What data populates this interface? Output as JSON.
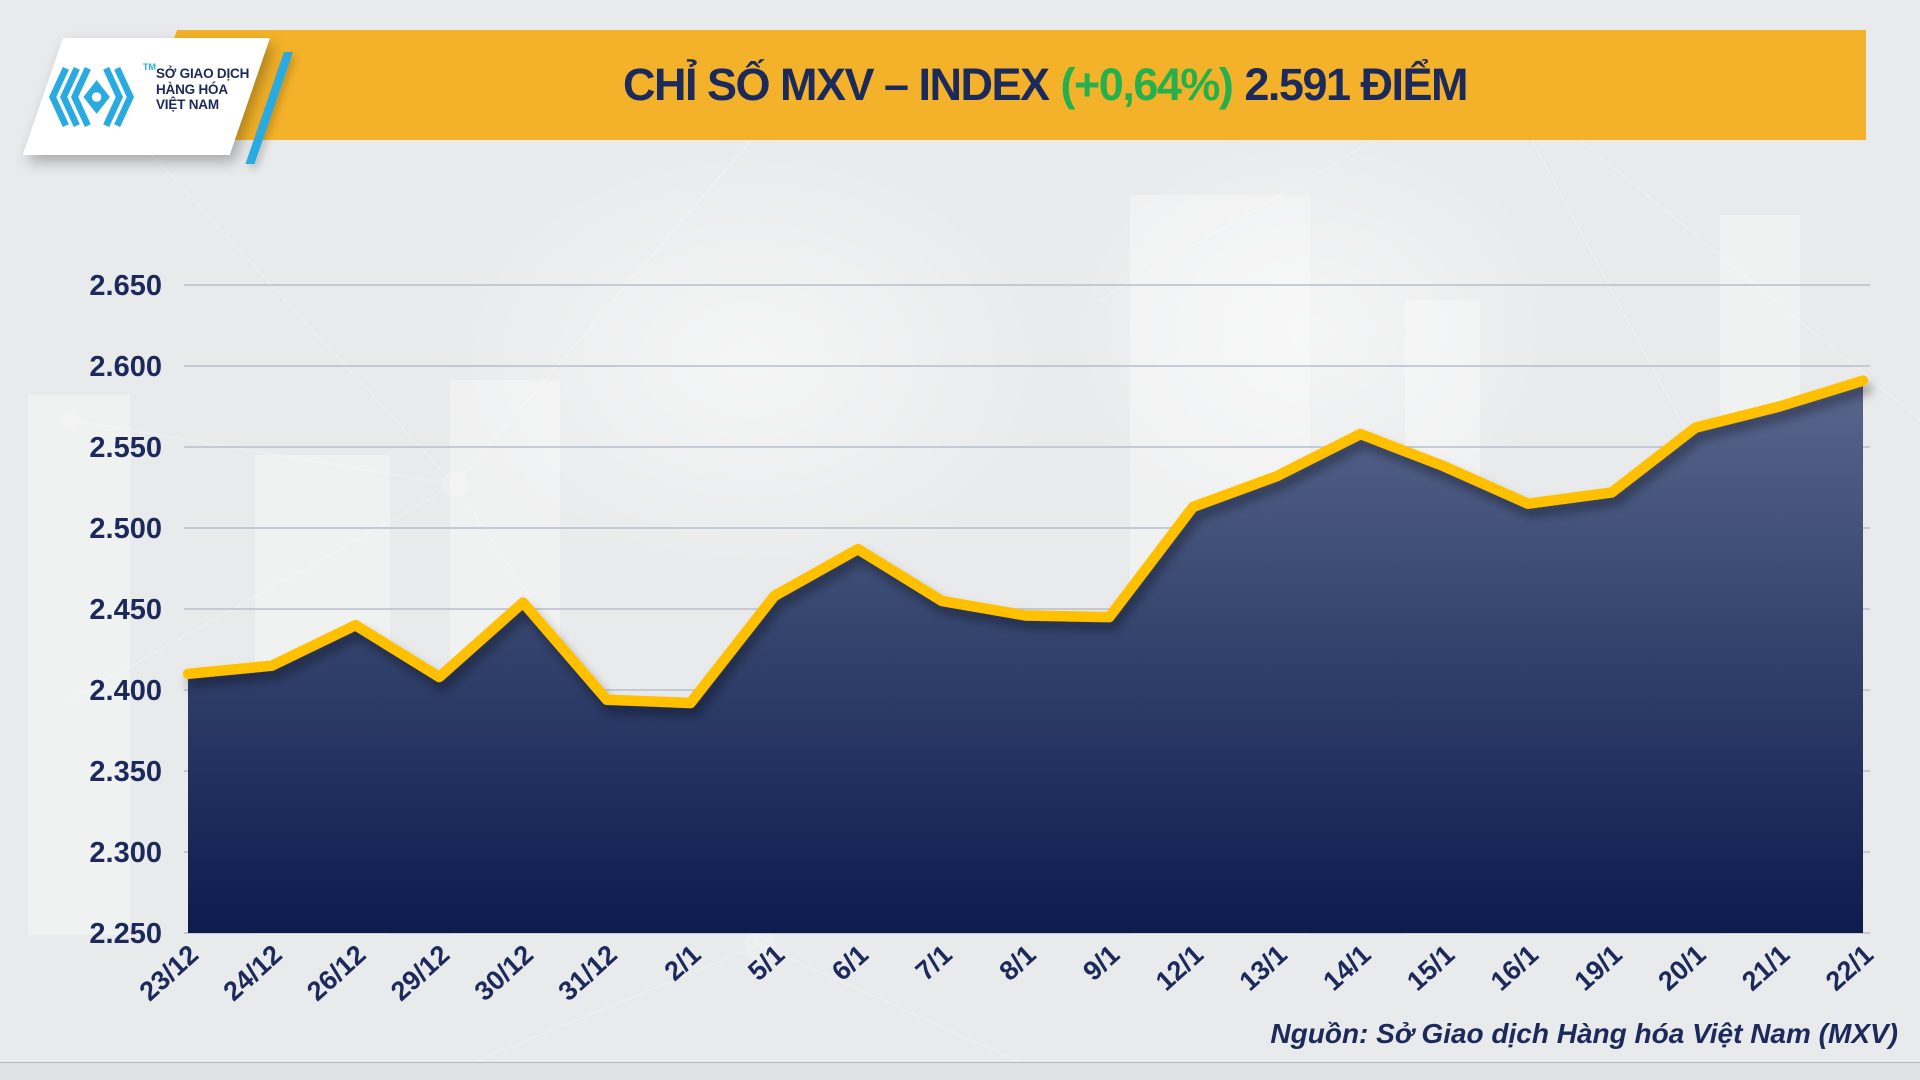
{
  "header": {
    "logo": {
      "lines": [
        "SỞ GIAO DỊCH",
        "HÀNG HÓA",
        "VIỆT NAM"
      ],
      "tm": "TM"
    },
    "title": {
      "prefix": "CHỈ SỐ MXV – INDEX",
      "change": "(+0,64%)",
      "suffix": "2.591 ĐIỂM"
    }
  },
  "chart_data": {
    "type": "area",
    "title": "CHỈ SỐ MXV – INDEX (+0,64%) 2.591 ĐIỂM",
    "xlabel": "",
    "ylabel": "",
    "categories": [
      "23/12",
      "24/12",
      "26/12",
      "29/12",
      "30/12",
      "31/12",
      "2/1",
      "5/1",
      "6/1",
      "7/1",
      "8/1",
      "9/1",
      "12/1",
      "13/1",
      "14/1",
      "15/1",
      "16/1",
      "19/1",
      "20/1",
      "21/1",
      "22/1"
    ],
    "values": [
      2410,
      2415,
      2440,
      2408,
      2454,
      2394,
      2392,
      2458,
      2487,
      2455,
      2446,
      2445,
      2513,
      2532,
      2558,
      2538,
      2515,
      2522,
      2562,
      2575,
      2591
    ],
    "last_value_label": "2.591",
    "change_percent_label": "+0,64%",
    "ylim": [
      2250,
      2650
    ],
    "grid": true,
    "legend": "none",
    "y_ticks": [
      {
        "value": 2650,
        "label": "2.650"
      },
      {
        "value": 2600,
        "label": "2.600"
      },
      {
        "value": 2550,
        "label": "2.550"
      },
      {
        "value": 2500,
        "label": "2.500"
      },
      {
        "value": 2450,
        "label": "2.450"
      },
      {
        "value": 2400,
        "label": "2.400"
      },
      {
        "value": 2350,
        "label": "2.350"
      },
      {
        "value": 2300,
        "label": "2.300"
      },
      {
        "value": 2250,
        "label": "2.250"
      }
    ]
  },
  "palette": {
    "navy": "#1B2A5B",
    "banner_yellow": "#F3B229",
    "green": "#23B14D",
    "line_yellow": "#FFC000",
    "grid": "#B7BECD",
    "area_top": "#5C6990",
    "area_bottom": "#0D1B4E",
    "logo_blue": "#29ABE2",
    "background": "#E9EAEB"
  },
  "footer": {
    "source": "Nguồn: Sở Giao dịch Hàng hóa Việt Nam (MXV)"
  }
}
